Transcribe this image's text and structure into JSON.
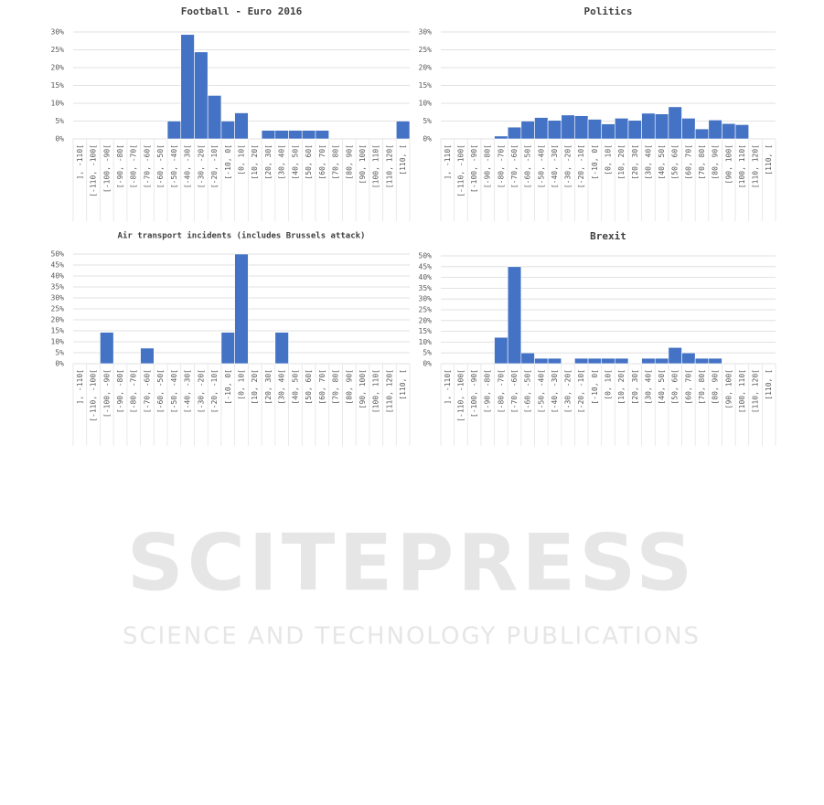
{
  "watermark": {
    "title": "SCITEPRESS",
    "subtitle": "SCIENCE AND TECHNOLOGY PUBLICATIONS"
  },
  "chart_data": [
    {
      "type": "bar",
      "title": "Football - Euro 2016",
      "color": "#4472c4",
      "grid": true,
      "categories": [
        "], -110[",
        "[-110, -100[",
        "[-100, -90[",
        "[-90, -80[",
        "[-80, -70[",
        "[-70, -60[",
        "[-60, -50[",
        "[-50, -40[",
        "[-40, -30[",
        "[-30, -20[",
        "[-20, -10[",
        "[-10, 0[",
        "[0, 10[",
        "[10, 20[",
        "[20, 30[",
        "[30, 40[",
        "[40, 50[",
        "[50, 60[",
        "[60, 70[",
        "[70, 80[",
        "[80, 90[",
        "[90, 100[",
        "[100, 110[",
        "[110, 120[",
        "[110, ["
      ],
      "values": [
        0,
        0,
        0,
        0,
        0,
        0,
        0,
        5,
        29.3,
        24.4,
        12.2,
        5,
        7.3,
        0,
        2.4,
        2.4,
        2.4,
        2.4,
        2.4,
        0,
        0,
        0,
        0,
        0,
        5
      ],
      "ylim": [
        0,
        30
      ],
      "yticks": [
        {
          "value": 0,
          "label": "0%"
        },
        {
          "value": 5,
          "label": "5%"
        },
        {
          "value": 10,
          "label": "10%"
        },
        {
          "value": 15,
          "label": "15%"
        },
        {
          "value": 20,
          "label": "20%"
        },
        {
          "value": 25,
          "label": "25%"
        },
        {
          "value": 30,
          "label": "30%"
        }
      ]
    },
    {
      "type": "bar",
      "title": "Politics",
      "color": "#4472c4",
      "grid": true,
      "categories": [
        "], -110[",
        "[-110, -100[",
        "[-100, -90[",
        "[-90, -80[",
        "[-80, -70[",
        "[-70, -60[",
        "[-60, -50[",
        "[-50, -40[",
        "[-40, -30[",
        "[-30, -20[",
        "[-20, -10[",
        "[-10, 0[",
        "[0, 10[",
        "[10, 20[",
        "[20, 30[",
        "[30, 40[",
        "[40, 50[",
        "[50, 60[",
        "[60, 70[",
        "[70, 80[",
        "[80, 90[",
        "[90, 100[",
        "[100, 110[",
        "[110, 120[",
        "[110, ["
      ],
      "values": [
        0,
        0,
        0,
        0,
        0.8,
        3.3,
        5,
        6,
        5.2,
        6.7,
        6.5,
        5.5,
        4.2,
        5.8,
        5.2,
        7.2,
        7,
        9,
        5.8,
        2.8,
        5.3,
        4.3,
        4,
        0,
        0
      ],
      "ylim": [
        0,
        30
      ],
      "yticks": [
        {
          "value": 0,
          "label": "0%"
        },
        {
          "value": 5,
          "label": "5%"
        },
        {
          "value": 10,
          "label": "10%"
        },
        {
          "value": 15,
          "label": "15%"
        },
        {
          "value": 20,
          "label": "20%"
        },
        {
          "value": 25,
          "label": "25%"
        },
        {
          "value": 30,
          "label": "30%"
        }
      ]
    },
    {
      "type": "bar",
      "title": "Air transport incidents (includes Brussels attack)",
      "color": "#4472c4",
      "grid": true,
      "categories": [
        "], -110[",
        "[-110, -100[",
        "[-100, -90[",
        "[-90, -80[",
        "[-80, -70[",
        "[-70, -60[",
        "[-60, -50[",
        "[-50, -40[",
        "[-40, -30[",
        "[-30, -20[",
        "[-20, -10[",
        "[-10, 0[",
        "[0, 10[",
        "[10, 20[",
        "[20, 30[",
        "[30, 40[",
        "[40, 50[",
        "[50, 60[",
        "[60, 70[",
        "[70, 80[",
        "[80, 90[",
        "[90, 100[",
        "[100, 110[",
        "[110, 120[",
        "[110, ["
      ],
      "values": [
        0,
        0,
        14.3,
        0,
        0,
        7.1,
        0,
        0,
        0,
        0,
        0,
        14.3,
        50,
        0,
        0,
        14.3,
        0,
        0,
        0,
        0,
        0,
        0,
        0,
        0,
        0
      ],
      "ylim": [
        0,
        50
      ],
      "yticks": [
        {
          "value": 0,
          "label": "0%"
        },
        {
          "value": 5,
          "label": "5%"
        },
        {
          "value": 10,
          "label": "10%"
        },
        {
          "value": 15,
          "label": "15%"
        },
        {
          "value": 20,
          "label": "20%"
        },
        {
          "value": 25,
          "label": "25%"
        },
        {
          "value": 30,
          "label": "30%"
        },
        {
          "value": 35,
          "label": "35%"
        },
        {
          "value": 40,
          "label": "40%"
        },
        {
          "value": 45,
          "label": "45%"
        },
        {
          "value": 50,
          "label": "50%"
        }
      ]
    },
    {
      "type": "bar",
      "title": "Brexit",
      "color": "#4472c4",
      "grid": true,
      "categories": [
        "], -110[",
        "[-110, -100[",
        "[-100, -90[",
        "[-90, -80[",
        "[-80, -70[",
        "[-70, -60[",
        "[-60, -50[",
        "[-50, -40[",
        "[-40, -30[",
        "[-30, -20[",
        "[-20, -10[",
        "[-10, 0[",
        "[0, 10[",
        "[10, 20[",
        "[20, 30[",
        "[30, 40[",
        "[40, 50[",
        "[50, 60[",
        "[60, 70[",
        "[70, 80[",
        "[80, 90[",
        "[90, 100[",
        "[100, 110[",
        "[110, 120[",
        "[110, ["
      ],
      "values": [
        0,
        0,
        0,
        0,
        12.2,
        45,
        5,
        2.5,
        2.5,
        0,
        2.5,
        2.5,
        2.5,
        2.5,
        0,
        2.5,
        2.5,
        7.5,
        5,
        2.5,
        2.5,
        0,
        0,
        0,
        0
      ],
      "ylim": [
        0,
        50
      ],
      "yticks": [
        {
          "value": 0,
          "label": "0%"
        },
        {
          "value": 5,
          "label": "5%"
        },
        {
          "value": 10,
          "label": "10%"
        },
        {
          "value": 15,
          "label": "15%"
        },
        {
          "value": 20,
          "label": "20%"
        },
        {
          "value": 25,
          "label": "25%"
        },
        {
          "value": 30,
          "label": "30%"
        },
        {
          "value": 35,
          "label": "35%"
        },
        {
          "value": 40,
          "label": "40%"
        },
        {
          "value": 45,
          "label": "45%"
        },
        {
          "value": 50,
          "label": "50%"
        }
      ]
    }
  ]
}
